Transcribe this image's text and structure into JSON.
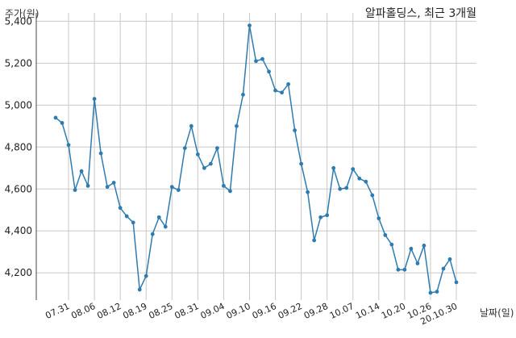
{
  "chart_data": {
    "type": "line",
    "title": "알파홀딩스, 최근 3개월",
    "ylabel": "주가(원)",
    "xlabel": "날짜(일)",
    "ylim": [
      4070,
      5440
    ],
    "yticks": [
      4200,
      4400,
      4600,
      4800,
      5000,
      5200,
      5400
    ],
    "ytick_labels": [
      "4,200",
      "4,400",
      "4,600",
      "4,800",
      "5,000",
      "5,200",
      "5,400"
    ],
    "xtick_labels": [
      "07.31",
      "08.06",
      "08.12",
      "08.19",
      "08.25",
      "08.31",
      "09.04",
      "09.10",
      "09.16",
      "09.22",
      "09.28",
      "10.07",
      "10.14",
      "10.20",
      "10.26",
      "20.10.30"
    ],
    "xtick_index": [
      2,
      6,
      10,
      14,
      18,
      22,
      26,
      30,
      34,
      38,
      42,
      46,
      50,
      54,
      58,
      62
    ],
    "grid": true,
    "colors": {
      "line": "#2e7bb0",
      "grid": "#c8c8c8",
      "axis": "#444444"
    },
    "series": [
      {
        "values": [
          4940,
          4915,
          4810,
          4595,
          4685,
          4615,
          5030,
          4770,
          4610,
          4630,
          4510,
          4470,
          4440,
          4120,
          4185,
          4385,
          4465,
          4420,
          4610,
          4595,
          4795,
          4900,
          4765,
          4700,
          4720,
          4795,
          4615,
          4590,
          4900,
          5050,
          5380,
          5210,
          5220,
          5160,
          5070,
          5060,
          5100,
          4880,
          4720,
          4585,
          4355,
          4465,
          4475,
          4700,
          4600,
          4605,
          4695,
          4650,
          4635,
          4570,
          4460,
          4380,
          4335,
          4215,
          4215,
          4315,
          4245,
          4330,
          4105,
          4110,
          4220,
          4265,
          4155
        ]
      }
    ]
  }
}
